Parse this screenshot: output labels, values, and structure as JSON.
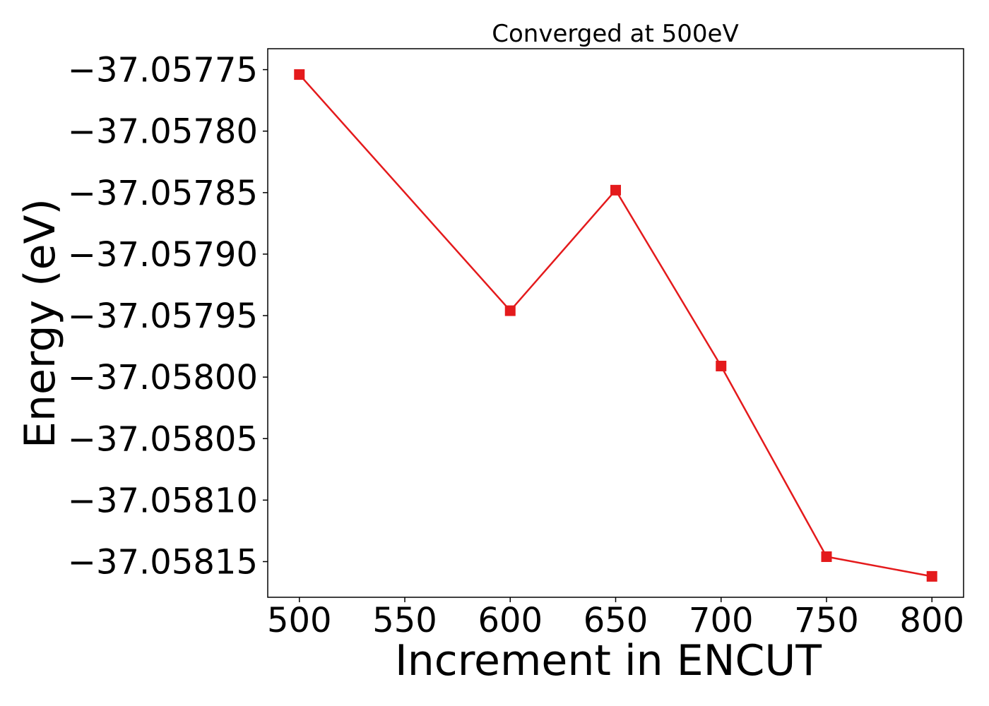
{
  "chart_data": {
    "type": "line",
    "title": "Converged at 500eV",
    "xlabel": "Increment in ENCUT",
    "ylabel": "Energy (eV)",
    "x": [
      500,
      600,
      650,
      700,
      750,
      800
    ],
    "series": [
      {
        "values": [
          -37.057754,
          -37.057946,
          -37.057848,
          -37.057991,
          -37.058146,
          -37.058162
        ],
        "color": "#e41a1c",
        "marker": "square"
      }
    ],
    "xlim": [
      485,
      815
    ],
    "ylim": [
      -37.058179,
      -37.057733
    ],
    "xticks": [
      500,
      550,
      600,
      650,
      700,
      750,
      800
    ],
    "xtick_labels": [
      "500",
      "550",
      "600",
      "650",
      "700",
      "750",
      "800"
    ],
    "yticks": [
      -37.05775,
      -37.0578,
      -37.05785,
      -37.0579,
      -37.05795,
      -37.058,
      -37.05805,
      -37.0581,
      -37.05815
    ],
    "ytick_labels": [
      "−37.05775",
      "−37.05780",
      "−37.05785",
      "−37.05790",
      "−37.05795",
      "−37.05800",
      "−37.05805",
      "−37.05810",
      "−37.05815"
    ],
    "grid": false,
    "legend": "none"
  }
}
